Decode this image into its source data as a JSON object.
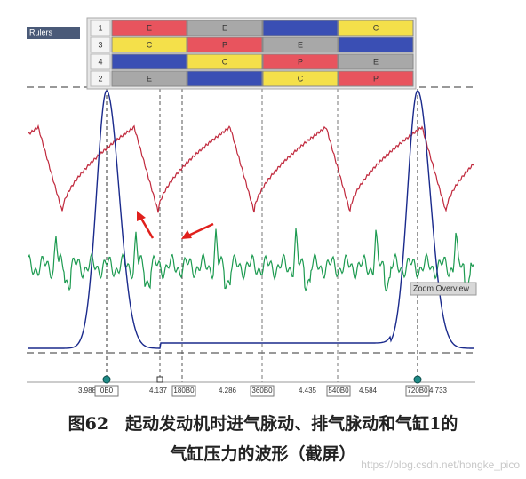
{
  "rulers_panel": {
    "title": "Rulers",
    "rows": [
      {
        "number": "1",
        "cells": [
          {
            "label": "E",
            "color": "#e8545e"
          },
          {
            "label": "E",
            "color": "#a8a8a8"
          },
          {
            "color": "#3a4fb4"
          },
          {
            "label": "C",
            "color": "#f4e04a"
          }
        ]
      },
      {
        "number": "3",
        "cells": [
          {
            "label": "C",
            "color": "#f4e04a"
          },
          {
            "label": "P",
            "color": "#e8545e"
          },
          {
            "label": "E",
            "color": "#a8a8a8"
          },
          {
            "color": "#3a4fb4"
          }
        ]
      },
      {
        "number": "4",
        "cells": [
          {
            "color": "#3a4fb4"
          },
          {
            "label": "C",
            "color": "#f4e04a"
          },
          {
            "label": "P",
            "color": "#e8545e"
          },
          {
            "label": "E",
            "color": "#a8a8a8"
          }
        ]
      },
      {
        "number": "2",
        "cells": [
          {
            "label": "E",
            "color": "#a8a8a8"
          },
          {
            "color": "#3a4fb4"
          },
          {
            "label": "C",
            "color": "#f4e04a"
          },
          {
            "label": "P",
            "color": "#e8545e"
          }
        ]
      }
    ]
  },
  "zoom_label": "Zoom Overview",
  "x_labels": [
    "3.988",
    "0B0",
    "4.137",
    "180B0",
    "4.286",
    "360B0",
    "4.435",
    "540B0",
    "4.584",
    "720B0",
    "4.733"
  ],
  "caption": {
    "line1": "图62　起动发动机时进气脉动、排气脉动和气缸1的",
    "line2": "气缸压力的波形（截屏）"
  },
  "watermark": "https://blog.csdn.net/hongke_pico"
}
